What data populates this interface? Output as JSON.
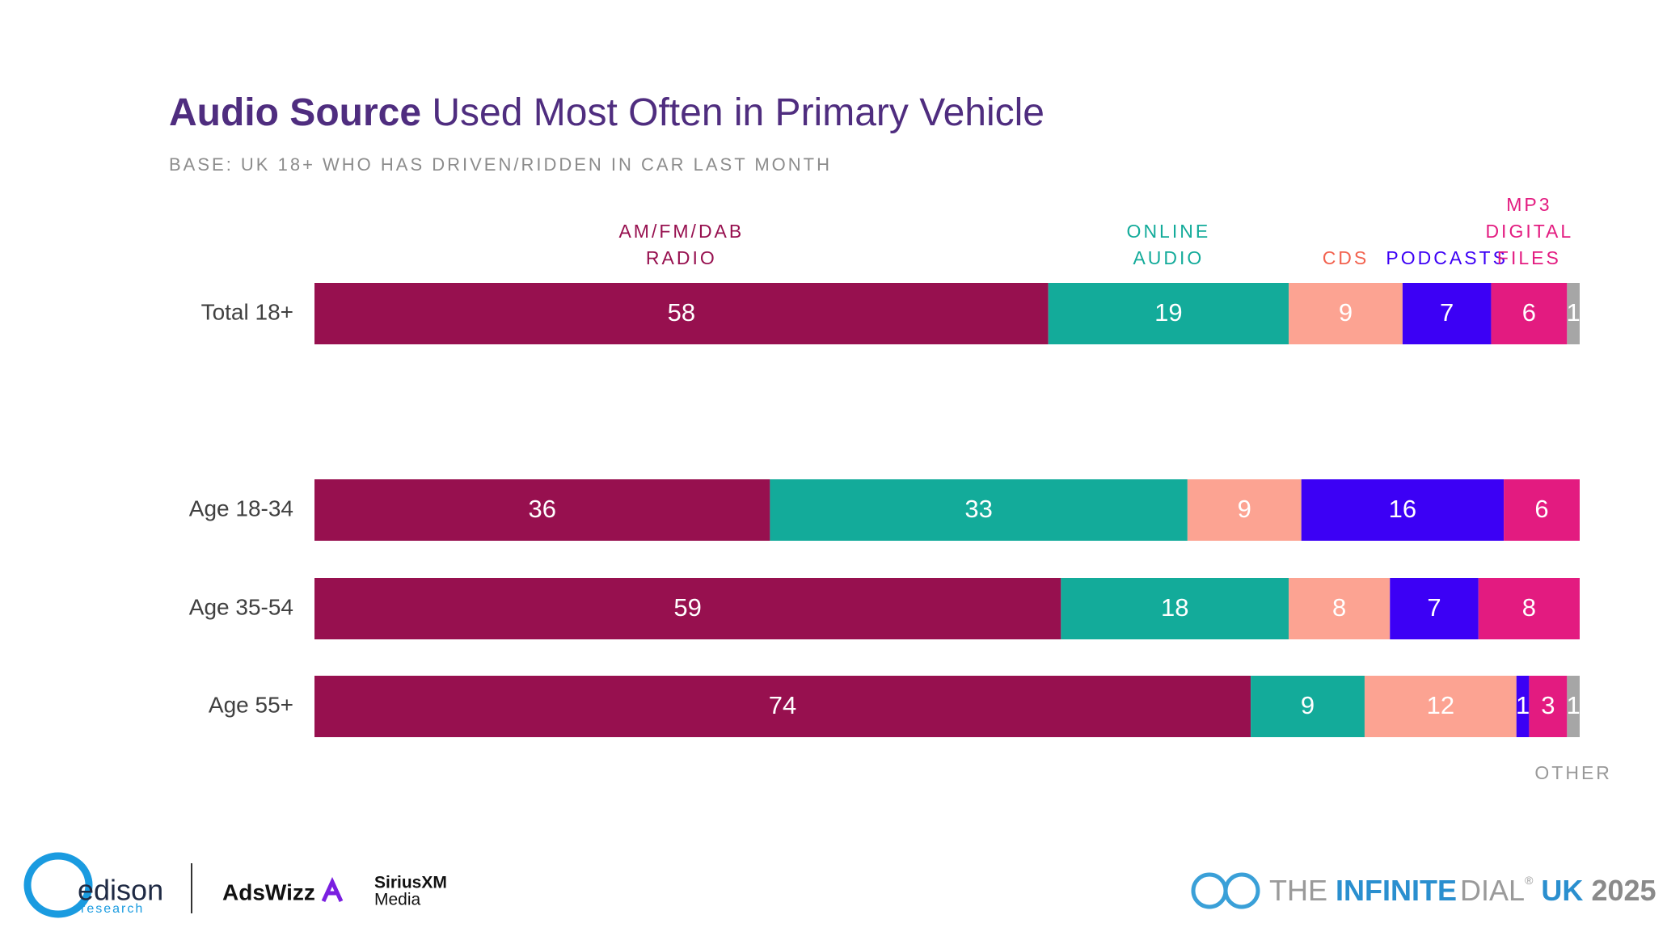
{
  "chart_data": {
    "type": "stacked-bar-horizontal",
    "title": {
      "bold": "Audio Source",
      "rest": "Used Most Often in Primary Vehicle"
    },
    "subtitle": "BASE: UK 18+ WHO HAS DRIVEN/RIDDEN IN CAR LAST MONTH",
    "categories": [
      "Total 18+",
      "Age 18-34",
      "Age 35-54",
      "Age 55+"
    ],
    "xlim": [
      0,
      100
    ],
    "series": [
      {
        "name": "AM/FM/DAB RADIO",
        "color": "#97104f",
        "label_color": "#97104f",
        "values": [
          58,
          36,
          59,
          74
        ]
      },
      {
        "name": "ONLINE AUDIO",
        "color": "#13ab9a",
        "label_color": "#13ab9a",
        "values": [
          19,
          33,
          18,
          9
        ]
      },
      {
        "name": "CDS",
        "color": "#fca392",
        "label_color": "#f2624f",
        "values": [
          9,
          9,
          8,
          12
        ]
      },
      {
        "name": "PODCASTS",
        "color": "#3c00f5",
        "label_color": "#3c00f5",
        "values": [
          7,
          16,
          7,
          1
        ]
      },
      {
        "name": "MP3 DIGITAL FILES",
        "color": "#e31b80",
        "label_color": "#e31b80",
        "values": [
          6,
          6,
          8,
          3
        ]
      },
      {
        "name": "OTHER",
        "color": "#a6a6a6",
        "label_color": "#999999",
        "values": [
          1,
          null,
          null,
          1
        ]
      }
    ]
  },
  "footer": {
    "edison": "edison",
    "research": "research",
    "adswizz": "AdsWizz",
    "siriusxm": "SiriusXM",
    "media": "Media",
    "dial": {
      "the": "THE",
      "infinite": "INFINITE",
      "dial": "DIAL",
      "reg": "®",
      "uk": "UK",
      "year": "2025"
    }
  }
}
